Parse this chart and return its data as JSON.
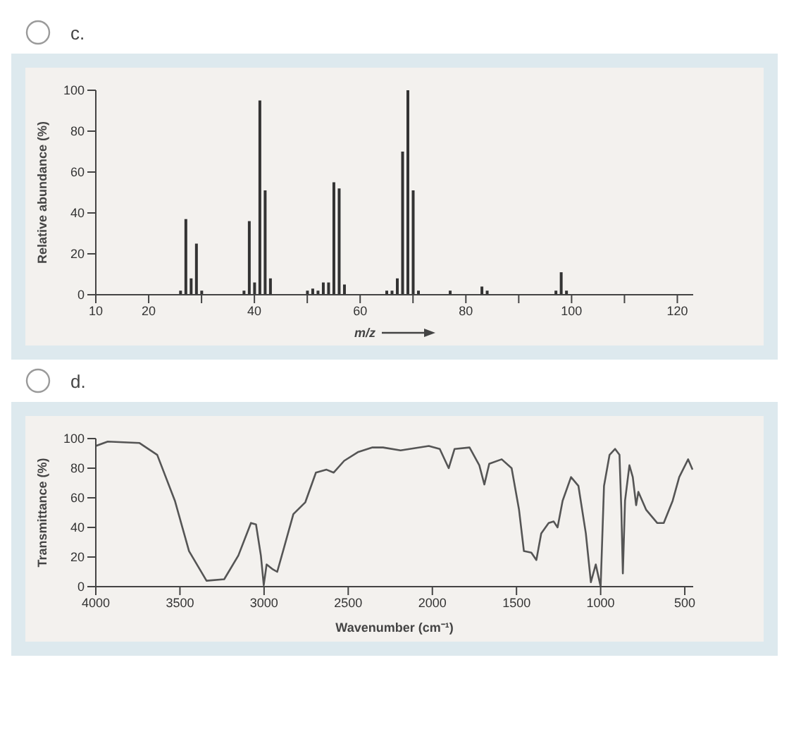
{
  "chart_data": [
    {
      "type": "bar",
      "title": "c.",
      "xlabel": "m/z",
      "ylabel": "Relative abundance (%)",
      "x": [
        26,
        27,
        28,
        29,
        30,
        38,
        39,
        40,
        41,
        42,
        43,
        50,
        51,
        52,
        53,
        54,
        55,
        56,
        57,
        65,
        66,
        67,
        68,
        69,
        70,
        71,
        77,
        83,
        84,
        97,
        98,
        99
      ],
      "values": [
        2,
        37,
        8,
        25,
        2,
        2,
        36,
        6,
        95,
        51,
        8,
        2,
        3,
        2,
        6,
        6,
        55,
        52,
        5,
        2,
        2,
        8,
        70,
        100,
        51,
        2,
        2,
        4,
        2,
        2,
        11,
        2
      ],
      "color": "#333333",
      "xlim": [
        10,
        123
      ],
      "xticks": [
        10,
        20,
        {
          "value": 30,
          "label": null
        },
        40,
        {
          "value": 50,
          "label": null
        },
        60,
        {
          "value": 70,
          "label": null
        },
        80,
        {
          "value": 90,
          "label": null
        },
        100,
        {
          "value": 110,
          "label": null
        },
        120
      ],
      "ylim": [
        0,
        100
      ],
      "yticks": [
        0,
        20,
        40,
        60,
        80,
        100
      ]
    },
    {
      "type": "line",
      "title": "d.",
      "xlabel": "Wavenumber (cm⁻¹)",
      "ylabel": "Transmittance (%)",
      "x": [
        4000,
        3929,
        3740,
        3635,
        3530,
        3446,
        3342,
        3237,
        3153,
        3078,
        3048,
        3019,
        3002,
        2985,
        2952,
        2922,
        2880,
        2826,
        2755,
        2692,
        2629,
        2587,
        2524,
        2440,
        2356,
        2293,
        2189,
        2021,
        1956,
        1903,
        1868,
        1779,
        1721,
        1691,
        1662,
        1588,
        1529,
        1485,
        1456,
        1412,
        1382,
        1353,
        1309,
        1279,
        1256,
        1226,
        1176,
        1132,
        1088,
        1058,
        1029,
        1000,
        980,
        947,
        914,
        888,
        877,
        868,
        855,
        829,
        809,
        789,
        776,
        730,
        664,
        625,
        572,
        533,
        480,
        454
      ],
      "values": [
        95,
        98,
        97,
        89,
        58,
        24,
        4,
        5,
        21,
        43,
        42,
        21,
        1,
        15,
        12,
        10,
        27,
        49,
        57,
        77,
        79,
        77,
        85,
        91,
        94,
        94,
        92,
        95,
        93,
        80,
        93,
        94,
        82,
        69,
        83,
        86,
        80,
        52,
        24,
        23,
        18,
        36,
        43,
        44,
        40,
        58,
        74,
        68,
        36,
        3,
        15,
        0,
        68,
        89,
        93,
        89,
        52,
        9,
        58,
        82,
        74,
        55,
        64,
        52,
        43,
        43,
        58,
        74,
        86,
        79
      ],
      "color": "#555555",
      "marker": "none",
      "xlim": [
        4000,
        450
      ],
      "xticks": [
        4000,
        3500,
        3000,
        2500,
        2000,
        1500,
        1000,
        500
      ],
      "ylim": [
        0,
        100
      ],
      "yticks": [
        0,
        20,
        40,
        60,
        80,
        100
      ]
    }
  ]
}
